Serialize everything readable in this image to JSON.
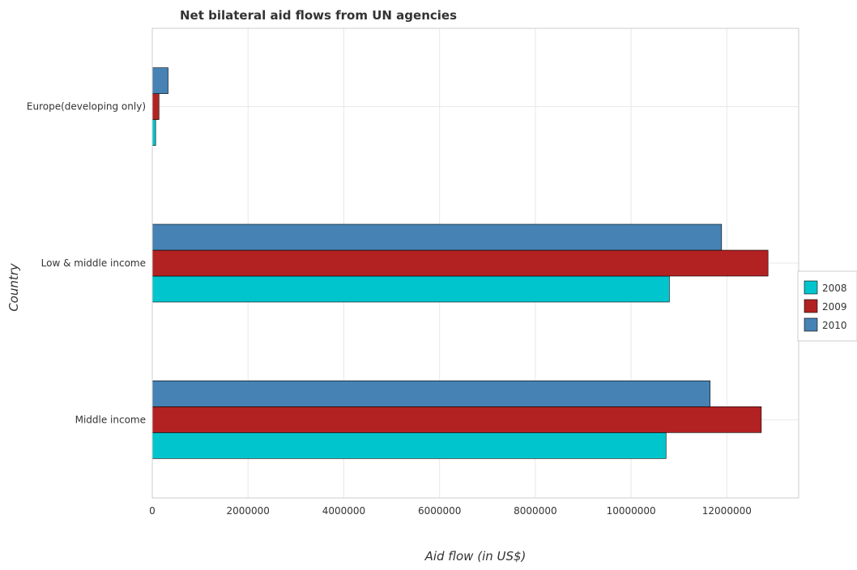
{
  "chart_data": {
    "type": "bar",
    "orientation": "horizontal",
    "title": "Net bilateral aid flows from UN agencies",
    "xlabel": "Aid flow (in US$)",
    "ylabel": "Country",
    "categories": [
      "Europe(developing only)",
      "Low & middle income",
      "Middle income"
    ],
    "series": [
      {
        "name": "2008",
        "color": "#00c5cd",
        "values": [
          70000,
          10800000,
          10730000
        ]
      },
      {
        "name": "2009",
        "color": "#b22222",
        "values": [
          140000,
          12860000,
          12720000
        ]
      },
      {
        "name": "2010",
        "color": "#4682b4",
        "values": [
          330000,
          11890000,
          11650000
        ]
      }
    ],
    "xlim": [
      0,
      13500000
    ],
    "xticks": [
      0,
      2000000,
      4000000,
      6000000,
      8000000,
      10000000,
      12000000
    ],
    "xtick_labels": [
      "0",
      "2000000",
      "4000000",
      "6000000",
      "8000000",
      "10000000",
      "12000000"
    ],
    "grid": true,
    "legend_position": "right"
  }
}
